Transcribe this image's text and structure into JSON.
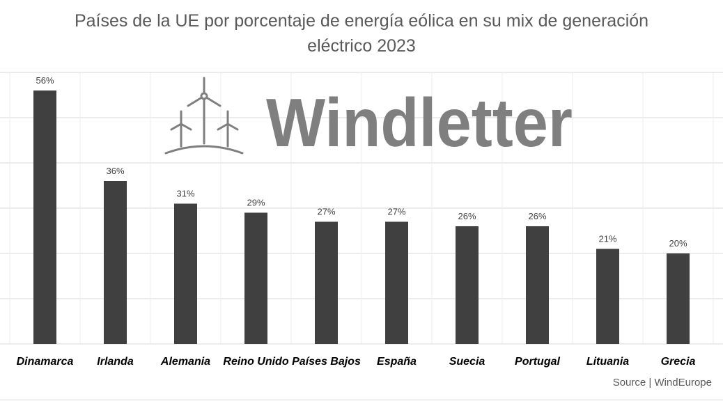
{
  "title": {
    "line1": "Países de la UE por porcentaje de energía eólica en su mix de generación",
    "line2": "eléctrico 2023"
  },
  "source": "Source | WindEurope",
  "watermark": {
    "text": "Windletter",
    "icon": "wind-turbines-icon",
    "color": "#7f7f7f"
  },
  "colors": {
    "bar": "#404040",
    "grid": "#d9d9d9",
    "label": "#404040"
  },
  "chart_data": {
    "type": "bar",
    "title": "Países de la UE por porcentaje de energía eólica en su mix de generación eléctrico 2023",
    "categories": [
      "Dinamarca",
      "Irlanda",
      "Alemania",
      "Reino Unido",
      "Países Bajos",
      "España",
      "Suecia",
      "Portugal",
      "Lituania",
      "Grecia"
    ],
    "values": [
      56,
      36,
      31,
      29,
      27,
      27,
      26,
      26,
      21,
      20
    ],
    "data_labels": [
      "56%",
      "36%",
      "31%",
      "29%",
      "27%",
      "27%",
      "26%",
      "26%",
      "21%",
      "20%"
    ],
    "unit": "%",
    "ylim": [
      0,
      60
    ],
    "grid": true,
    "legend": "none"
  }
}
